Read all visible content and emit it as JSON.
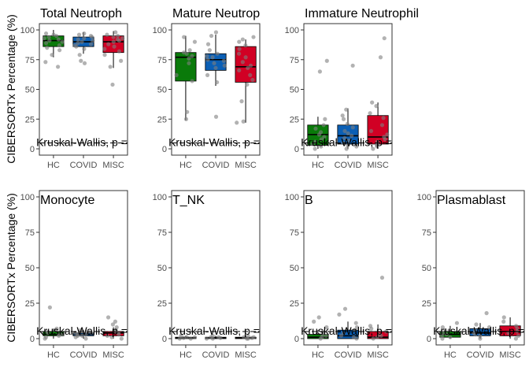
{
  "figure": {
    "y_axis_label": "CIBERSORTx Percentage (%)",
    "panel_titles": [
      "Total Neutroph",
      "Mature Neutrop",
      "Immature Neutrophil",
      "Monocyte",
      "T_NK",
      "B",
      "Plasmablast"
    ],
    "stat_label": "Kruskal-Wallis, p ="
  },
  "colors": {
    "HC": "#0a7a0a",
    "COVID": "#0b5fb5",
    "MISC": "#d10024",
    "point": "#7f7f7f",
    "frame": "#333333",
    "tick_text": "#4d4d4d"
  },
  "chart_data": [
    {
      "type": "box",
      "title": "Total Neutroph",
      "categories": [
        "HC",
        "COVID",
        "MISC"
      ],
      "ylim": [
        0,
        100
      ],
      "yticks": [
        0,
        25,
        50,
        75,
        100
      ],
      "boxes": [
        {
          "q1": 86,
          "median": 91,
          "q3": 95,
          "whisker_low": 77,
          "whisker_high": 100
        },
        {
          "q1": 86,
          "median": 90,
          "q3": 94,
          "whisker_low": 80,
          "whisker_high": 98
        },
        {
          "q1": 81,
          "median": 90,
          "q3": 95,
          "whisker_low": 68,
          "whisker_high": 99
        }
      ],
      "points": [
        [
          69,
          73,
          79,
          83,
          85,
          87,
          89,
          90,
          91,
          92,
          93,
          94,
          95,
          96,
          97
        ],
        [
          72,
          74,
          79,
          84,
          86,
          87,
          88,
          89,
          90,
          91,
          92,
          93,
          94,
          95,
          96,
          97
        ],
        [
          54,
          69,
          74,
          79,
          82,
          84,
          86,
          88,
          90,
          91,
          92,
          93,
          94,
          95,
          96,
          98
        ]
      ],
      "stat_reference_y": 5
    },
    {
      "type": "box",
      "title": "Mature Neutrop",
      "categories": [
        "HC",
        "COVID",
        "MISC"
      ],
      "ylim": [
        0,
        100
      ],
      "yticks": [
        0,
        25,
        50,
        75,
        100
      ],
      "boxes": [
        {
          "q1": 57,
          "median": 77,
          "q3": 81,
          "whisker_low": 24,
          "whisker_high": 95
        },
        {
          "q1": 66,
          "median": 75,
          "q3": 80,
          "whisker_low": 53,
          "whisker_high": 96
        },
        {
          "q1": 56,
          "median": 69,
          "q3": 86,
          "whisker_low": 22,
          "whisker_high": 92
        }
      ],
      "points": [
        [
          25,
          31,
          57,
          62,
          72,
          76,
          78,
          80,
          81,
          83,
          90,
          94
        ],
        [
          27,
          56,
          62,
          68,
          70,
          72,
          74,
          75,
          77,
          78,
          80,
          83,
          88,
          95,
          98
        ],
        [
          22,
          23,
          40,
          54,
          58,
          62,
          66,
          68,
          70,
          73,
          77,
          80,
          84,
          87,
          90,
          92,
          94
        ]
      ],
      "stat_reference_y": 5
    },
    {
      "type": "box",
      "title": "Immature Neutrophil",
      "categories": [
        "HC",
        "COVID",
        "MISC"
      ],
      "ylim": [
        0,
        100
      ],
      "yticks": [
        0,
        25,
        50,
        75,
        100
      ],
      "boxes": [
        {
          "q1": 3,
          "median": 12,
          "q3": 20,
          "whisker_low": 0,
          "whisker_high": 27
        },
        {
          "q1": 4,
          "median": 11,
          "q3": 20,
          "whisker_low": 0,
          "whisker_high": 34
        },
        {
          "q1": 4,
          "median": 10,
          "q3": 28,
          "whisker_low": 0,
          "whisker_high": 39
        }
      ],
      "points": [
        [
          0,
          2,
          4,
          6,
          8,
          10,
          12,
          14,
          17,
          20,
          25,
          65,
          74
        ],
        [
          0,
          2,
          3,
          5,
          7,
          9,
          11,
          13,
          15,
          18,
          21,
          25,
          28,
          33,
          70
        ],
        [
          0,
          2,
          3,
          4,
          6,
          8,
          10,
          12,
          15,
          20,
          26,
          30,
          36,
          39,
          77,
          93
        ]
      ],
      "stat_reference_y": 5
    },
    {
      "type": "box",
      "title": "Monocyte",
      "categories": [
        "HC",
        "COVID",
        "MISC"
      ],
      "ylim": [
        0,
        100
      ],
      "yticks": [
        0,
        25,
        50,
        75,
        100
      ],
      "boxes": [
        {
          "q1": 2,
          "median": 3,
          "q3": 5,
          "whisker_low": 0,
          "whisker_high": 7
        },
        {
          "q1": 2,
          "median": 3,
          "q3": 4,
          "whisker_low": 0,
          "whisker_high": 6
        },
        {
          "q1": 2,
          "median": 4,
          "q3": 5,
          "whisker_low": 0,
          "whisker_high": 8
        }
      ],
      "points": [
        [
          0,
          1,
          2,
          3,
          3,
          4,
          5,
          6,
          7,
          22
        ],
        [
          0,
          1,
          2,
          2,
          3,
          3,
          4,
          4,
          5,
          6
        ],
        [
          0,
          1,
          2,
          3,
          4,
          5,
          6,
          8,
          10,
          12,
          15
        ]
      ],
      "stat_reference_y": 5
    },
    {
      "type": "box",
      "title": "T_NK",
      "categories": [
        "HC",
        "COVID",
        "MISC"
      ],
      "ylim": [
        0,
        100
      ],
      "yticks": [
        0,
        25,
        50,
        75,
        100
      ],
      "boxes": [
        {
          "q1": 0,
          "median": 0.5,
          "q3": 1,
          "whisker_low": 0,
          "whisker_high": 2
        },
        {
          "q1": 0,
          "median": 0.5,
          "q3": 1,
          "whisker_low": 0,
          "whisker_high": 2
        },
        {
          "q1": 0,
          "median": 0.5,
          "q3": 1,
          "whisker_low": 0,
          "whisker_high": 2
        }
      ],
      "points": [
        [
          0,
          0,
          0.5,
          1,
          1,
          2
        ],
        [
          0,
          0,
          0.5,
          1,
          1,
          2
        ],
        [
          0,
          0,
          0.5,
          1,
          1,
          2
        ]
      ],
      "stat_reference_y": 5
    },
    {
      "type": "box",
      "title": "B",
      "categories": [
        "HC",
        "COVID",
        "MISC"
      ],
      "ylim": [
        0,
        100
      ],
      "yticks": [
        0,
        25,
        50,
        75,
        100
      ],
      "boxes": [
        {
          "q1": 0,
          "median": 1,
          "q3": 3,
          "whisker_low": 0,
          "whisker_high": 6
        },
        {
          "q1": 0,
          "median": 2,
          "q3": 6,
          "whisker_low": 0,
          "whisker_high": 12
        },
        {
          "q1": 0,
          "median": 1,
          "q3": 5,
          "whisker_low": 0,
          "whisker_high": 10
        }
      ],
      "points": [
        [
          0,
          1,
          2,
          3,
          5,
          8,
          12,
          15
        ],
        [
          0,
          1,
          2,
          4,
          6,
          8,
          11,
          17,
          21
        ],
        [
          0,
          1,
          2,
          3,
          5,
          7,
          9,
          43
        ]
      ],
      "stat_reference_y": 5
    },
    {
      "type": "box",
      "title": "Plasmablast",
      "categories": [
        "HC",
        "COVID",
        "MISC"
      ],
      "ylim": [
        0,
        100
      ],
      "yticks": [
        0,
        25,
        50,
        75,
        100
      ],
      "boxes": [
        {
          "q1": 1,
          "median": 3,
          "q3": 5,
          "whisker_low": 0,
          "whisker_high": 9
        },
        {
          "q1": 2,
          "median": 4,
          "q3": 7,
          "whisker_low": 0,
          "whisker_high": 11
        },
        {
          "q1": 2,
          "median": 5,
          "q3": 9,
          "whisker_low": 0,
          "whisker_high": 15
        }
      ],
      "points": [
        [
          0,
          1,
          2,
          3,
          4,
          6,
          8,
          11
        ],
        [
          0,
          2,
          3,
          4,
          6,
          8,
          10,
          18
        ],
        [
          0,
          2,
          4,
          5,
          7,
          9,
          12,
          15
        ]
      ],
      "stat_reference_y": 5
    }
  ]
}
